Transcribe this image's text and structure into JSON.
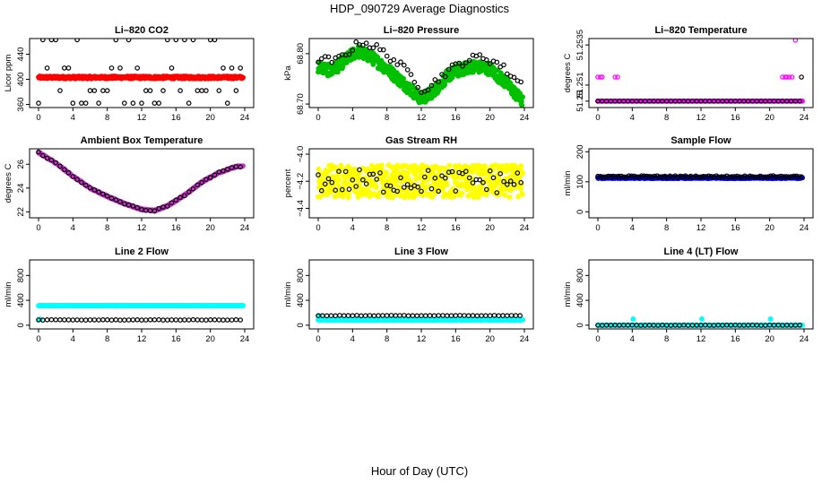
{
  "figure": {
    "title": "HDP_090729  Average Diagnostics",
    "xlabel": "Hour of Day (UTC)",
    "x_ticks": [
      "0",
      "4",
      "8",
      "12",
      "16",
      "20",
      "24"
    ]
  },
  "chart_data": [
    {
      "type": "scatter",
      "title": "Li–820 CO2",
      "ylabel": "Licor ppm",
      "xlim": [
        0,
        24
      ],
      "ylim": [
        355,
        465
      ],
      "yticks": [
        360,
        400,
        440
      ],
      "ytick_labels": [
        "360",
        "400",
        "440"
      ],
      "series": [
        {
          "color": "#ff0000",
          "fill": true,
          "pattern": "flat",
          "params": {
            "v": 403,
            "jit": 2,
            "step": 0.05
          }
        },
        {
          "color": "#000000",
          "fill": false,
          "pattern": "levels",
          "params": {
            "levels": [
              362,
              382,
              418,
              463
            ],
            "step": 0.5
          }
        }
      ]
    },
    {
      "type": "scatter",
      "title": "Li–820 Pressure",
      "ylabel": "kPa",
      "xlim": [
        0,
        24
      ],
      "ylim": [
        68.693,
        68.83
      ],
      "yticks": [
        68.7,
        68.8
      ],
      "ytick_labels": [
        "68.70",
        "68.80"
      ],
      "series": [
        {
          "color": "#00c000",
          "fill": true,
          "pattern": "wave",
          "params": {
            "pts": [
              [
                0,
                68.775
              ],
              [
                1.5,
                68.765
              ],
              [
                3,
                68.785
              ],
              [
                4.5,
                68.805
              ],
              [
                6,
                68.795
              ],
              [
                8,
                68.77
              ],
              [
                10,
                68.74
              ],
              [
                12,
                68.71
              ],
              [
                13,
                68.72
              ],
              [
                14,
                68.735
              ],
              [
                15,
                68.755
              ],
              [
                16,
                68.765
              ],
              [
                18,
                68.775
              ],
              [
                20,
                68.77
              ],
              [
                22,
                68.74
              ],
              [
                24,
                68.7
              ]
            ],
            "jit": 0.012,
            "step": 0.04
          }
        },
        {
          "color": "#000000",
          "fill": false,
          "pattern": "wave",
          "params": {
            "pts": [
              [
                0,
                68.79
              ],
              [
                2,
                68.785
              ],
              [
                4,
                68.81
              ],
              [
                5,
                68.825
              ],
              [
                7,
                68.81
              ],
              [
                9,
                68.785
              ],
              [
                11,
                68.755
              ],
              [
                12,
                68.73
              ],
              [
                13,
                68.735
              ],
              [
                15,
                68.765
              ],
              [
                17,
                68.785
              ],
              [
                19,
                68.795
              ],
              [
                21,
                68.78
              ],
              [
                23,
                68.75
              ],
              [
                24,
                68.735
              ]
            ],
            "jit": 0.008,
            "step": 0.4
          }
        }
      ]
    },
    {
      "type": "scatter",
      "title": "Li–820 Temperature",
      "ylabel": "degrees C",
      "xlim": [
        0,
        24
      ],
      "ylim": [
        51.2496,
        51.2539
      ],
      "yticks": [
        51.25,
        51.251,
        51.2535
      ],
      "ytick_labels": [
        "51.25",
        "51.251",
        "51.2535"
      ],
      "series": [
        {
          "color": "#ff00ff",
          "fill": false,
          "pattern": "points",
          "params": {
            "pts": [
              [
                0,
                51.2515
              ],
              [
                0.3,
                51.2515
              ],
              [
                0.5,
                51.2515
              ],
              [
                2,
                51.2515
              ],
              [
                2.3,
                51.2515
              ],
              [
                21.5,
                51.2515
              ],
              [
                21.8,
                51.2515
              ],
              [
                22,
                51.2515
              ],
              [
                22.3,
                51.2515
              ],
              [
                22.6,
                51.2515
              ],
              [
                23.0,
                51.2538
              ]
            ]
          }
        },
        {
          "color": "#ff00ff",
          "fill": true,
          "pattern": "flat",
          "params": {
            "v": 51.25,
            "jit": 0,
            "step": 0.2
          }
        },
        {
          "color": "#000000",
          "fill": false,
          "pattern": "flat",
          "params": {
            "v": 51.25,
            "jit": 0,
            "step": 0.5
          }
        },
        {
          "color": "#000000",
          "fill": false,
          "pattern": "points",
          "params": {
            "pts": [
              [
                23.7,
                51.2515
              ]
            ]
          }
        }
      ]
    },
    {
      "type": "scatter",
      "title": "Ambient Box Temperature",
      "ylabel": "degrees C",
      "xlim": [
        0,
        24
      ],
      "ylim": [
        21.5,
        27.3
      ],
      "yticks": [
        22,
        24,
        26
      ],
      "ytick_labels": [
        "22",
        "24",
        "26"
      ],
      "series": [
        {
          "color": "#cc33cc",
          "fill": true,
          "pattern": "wave",
          "params": {
            "pts": [
              [
                0,
                27.0
              ],
              [
                2,
                26.1
              ],
              [
                4,
                25.0
              ],
              [
                6,
                24.0
              ],
              [
                8,
                23.3
              ],
              [
                10,
                22.7
              ],
              [
                12,
                22.2
              ],
              [
                13.5,
                22.1
              ],
              [
                15,
                22.5
              ],
              [
                17,
                23.4
              ],
              [
                19,
                24.5
              ],
              [
                21,
                25.3
              ],
              [
                23,
                25.8
              ],
              [
                24,
                25.85
              ]
            ],
            "jit": 0.05,
            "step": 0.05
          }
        },
        {
          "color": "#000000",
          "fill": false,
          "pattern": "wave",
          "params": {
            "pts": [
              [
                0,
                27.0
              ],
              [
                2,
                26.1
              ],
              [
                4,
                25.0
              ],
              [
                6,
                24.0
              ],
              [
                8,
                23.3
              ],
              [
                10,
                22.7
              ],
              [
                12,
                22.2
              ],
              [
                13.5,
                22.1
              ],
              [
                15,
                22.5
              ],
              [
                17,
                23.4
              ],
              [
                19,
                24.5
              ],
              [
                21,
                25.3
              ],
              [
                23,
                25.8
              ],
              [
                24,
                25.85
              ]
            ],
            "jit": 0.05,
            "step": 0.5
          }
        }
      ]
    },
    {
      "type": "scatter",
      "title": "Gas Stream RH",
      "ylabel": "percent",
      "xlim": [
        0,
        24
      ],
      "ylim": [
        -4.47,
        -3.96
      ],
      "yticks": [
        -4.0,
        -4.2,
        -4.4
      ],
      "ytick_labels": [
        "−4.0",
        "−4.2",
        "−4.4"
      ],
      "series": [
        {
          "color": "#ffff00",
          "fill": true,
          "pattern": "flat",
          "params": {
            "v": -4.2,
            "jit": 0.12,
            "step": 0.04
          }
        },
        {
          "color": "#000000",
          "fill": false,
          "pattern": "flat",
          "params": {
            "v": -4.2,
            "jit": 0.09,
            "step": 0.4
          }
        }
      ]
    },
    {
      "type": "scatter",
      "title": "Sample Flow",
      "ylabel": "ml/min",
      "xlim": [
        0,
        24
      ],
      "ylim": [
        -20,
        210
      ],
      "yticks": [
        0,
        100,
        200
      ],
      "ytick_labels": [
        "0",
        "100",
        "200"
      ],
      "series": [
        {
          "color": "#0000cc",
          "fill": true,
          "pattern": "flat",
          "params": {
            "v": 113,
            "jit": 2,
            "step": 0.05
          }
        },
        {
          "color": "#000000",
          "fill": false,
          "pattern": "flat",
          "params": {
            "v": 118,
            "jit": 2,
            "step": 0.3
          }
        }
      ]
    },
    {
      "type": "scatter",
      "title": "Line 2 Flow",
      "ylabel": "ml/min",
      "xlim": [
        0,
        24
      ],
      "ylim": [
        -60,
        1050
      ],
      "yticks": [
        0,
        400,
        800
      ],
      "ytick_labels": [
        "0",
        "400",
        "800"
      ],
      "series": [
        {
          "color": "#00ffff",
          "fill": true,
          "pattern": "flat",
          "params": {
            "v": 315,
            "jit": 3,
            "step": 0.05
          }
        },
        {
          "color": "#00ffff",
          "fill": true,
          "pattern": "points",
          "params": {
            "pts": [
              [
                0.1,
                90
              ],
              [
                0.2,
                95
              ]
            ]
          }
        },
        {
          "color": "#000000",
          "fill": false,
          "pattern": "flat",
          "params": {
            "v": 85,
            "jit": 3,
            "step": 0.5
          }
        }
      ]
    },
    {
      "type": "scatter",
      "title": "Line 3 Flow",
      "ylabel": "ml/min",
      "xlim": [
        0,
        24
      ],
      "ylim": [
        -60,
        1050
      ],
      "yticks": [
        0,
        400,
        800
      ],
      "ytick_labels": [
        "0",
        "400",
        "800"
      ],
      "series": [
        {
          "color": "#00ffff",
          "fill": true,
          "pattern": "flat",
          "params": {
            "v": 85,
            "jit": 5,
            "step": 0.05
          }
        },
        {
          "color": "#00ffff",
          "fill": true,
          "pattern": "points",
          "params": {
            "pts": [
              [
                0.1,
                150
              ],
              [
                0.2,
                140
              ]
            ]
          }
        },
        {
          "color": "#000000",
          "fill": false,
          "pattern": "flat",
          "params": {
            "v": 155,
            "jit": 3,
            "step": 0.5
          }
        }
      ]
    },
    {
      "type": "scatter",
      "title": "Line 4 (LT) Flow",
      "ylabel": "ml/min",
      "xlim": [
        0,
        24
      ],
      "ylim": [
        -60,
        1050
      ],
      "yticks": [
        0,
        400,
        800
      ],
      "ytick_labels": [
        "0",
        "400",
        "800"
      ],
      "series": [
        {
          "color": "#00ffff",
          "fill": true,
          "pattern": "flat",
          "params": {
            "v": 0,
            "jit": 2,
            "step": 0.05
          }
        },
        {
          "color": "#00ffff",
          "fill": true,
          "pattern": "points",
          "params": {
            "pts": [
              [
                0.1,
                0
              ],
              [
                4.1,
                100
              ],
              [
                12.1,
                100
              ],
              [
                20.1,
                100
              ]
            ]
          }
        },
        {
          "color": "#000000",
          "fill": false,
          "pattern": "flat",
          "params": {
            "v": 0,
            "jit": 2,
            "step": 0.5
          }
        }
      ]
    }
  ]
}
